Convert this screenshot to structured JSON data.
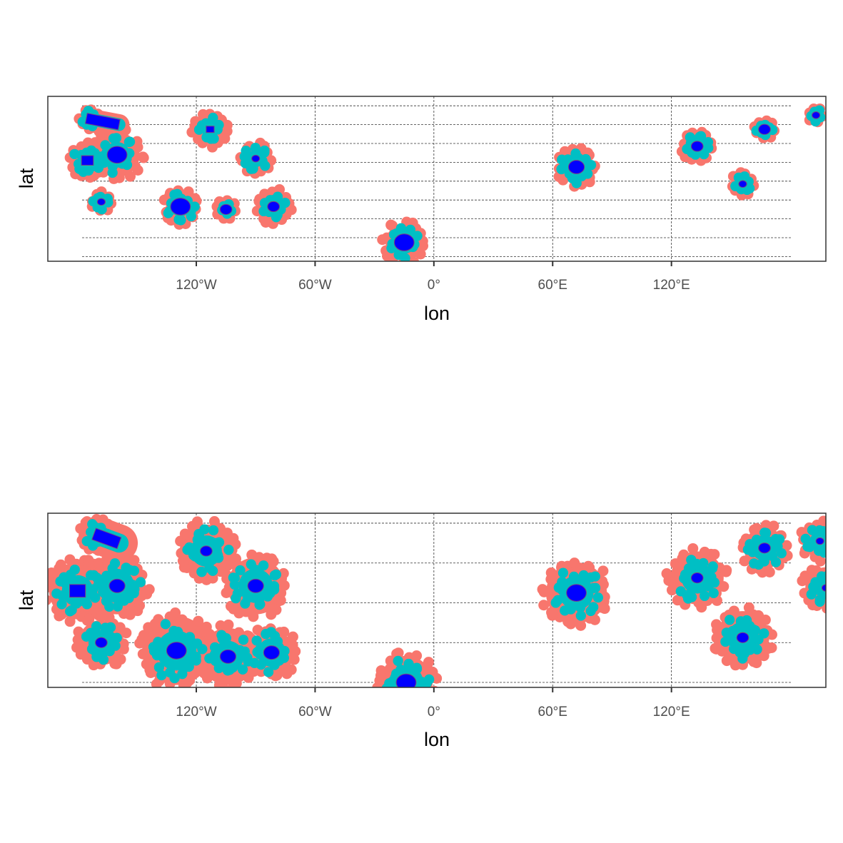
{
  "colors": {
    "outer_buffer": "#F8766D",
    "inner_buffer": "#00BFC4",
    "core": "#0000FF",
    "core_outline": "#7F3F7F",
    "panel_border": "#333333",
    "graticule": "#333333"
  },
  "chart_data": [
    {
      "type": "map",
      "xlabel": "lon",
      "ylabel": "lat",
      "xlim": [
        -195,
        198
      ],
      "ylim": [
        -85,
        90
      ],
      "x_ticks": [
        {
          "value": -120,
          "label": "120°W"
        },
        {
          "value": -60,
          "label": "60°W"
        },
        {
          "value": 0,
          "label": "0°"
        },
        {
          "value": 60,
          "label": "60°E"
        },
        {
          "value": 120,
          "label": "120°E"
        }
      ],
      "graticule_lat": [
        -80,
        -60,
        -40,
        -20,
        0,
        20,
        40,
        60,
        80
      ],
      "grid": true,
      "features": [
        {
          "lon": -174,
          "lat": 66,
          "outer": 5,
          "inner": 4,
          "core": 3.5,
          "shape": "band",
          "lon2": -159,
          "lat2": 60
        },
        {
          "lon": -166,
          "lat": 52,
          "outer": 3,
          "inner": 0,
          "core": 0
        },
        {
          "lon": -113,
          "lat": 55,
          "outer": 9,
          "inner": 6,
          "core": 2,
          "shape": "rect"
        },
        {
          "lon": -160,
          "lat": 28,
          "outer": 13,
          "inner": 9,
          "core": 5
        },
        {
          "lon": -175,
          "lat": 22,
          "outer": 9,
          "inner": 7,
          "core": 3,
          "shape": "rect"
        },
        {
          "lon": -90,
          "lat": 24,
          "outer": 8,
          "inner": 6,
          "core": 2
        },
        {
          "lon": 72,
          "lat": 15,
          "outer": 10,
          "inner": 8,
          "core": 4
        },
        {
          "lon": 133,
          "lat": 37,
          "outer": 8,
          "inner": 6,
          "core": 3
        },
        {
          "lon": 167,
          "lat": 55,
          "outer": 5,
          "inner": 4,
          "core": 3
        },
        {
          "lon": 193,
          "lat": 70,
          "outer": 4,
          "inner": 3,
          "core": 2
        },
        {
          "lon": 156,
          "lat": -3,
          "outer": 6,
          "inner": 4,
          "core": 2
        },
        {
          "lon": -168,
          "lat": -22,
          "outer": 5,
          "inner": 4,
          "core": 2
        },
        {
          "lon": -128,
          "lat": -27,
          "outer": 9,
          "inner": 7,
          "core": 5
        },
        {
          "lon": -105,
          "lat": -30,
          "outer": 5,
          "inner": 3,
          "core": 3
        },
        {
          "lon": -81,
          "lat": -27,
          "outer": 9,
          "inner": 6,
          "core": 3
        },
        {
          "lon": -15,
          "lat": -65,
          "outer": 11,
          "inner": 8,
          "core": 5
        }
      ]
    },
    {
      "type": "map",
      "xlabel": "lon",
      "ylabel": "lat",
      "xlim": [
        -195,
        198
      ],
      "ylim": [
        -85,
        90
      ],
      "x_ticks": [
        {
          "value": -120,
          "label": "120°W"
        },
        {
          "value": -60,
          "label": "60°W"
        },
        {
          "value": 0,
          "label": "0°"
        },
        {
          "value": 60,
          "label": "60°E"
        },
        {
          "value": 120,
          "label": "120°E"
        }
      ],
      "graticule_lat": [
        -80,
        -40,
        0,
        40,
        80
      ],
      "grid": true,
      "features": [
        {
          "lon": -170,
          "lat": 68,
          "outer": 9,
          "inner": 6,
          "core": 4,
          "shape": "band",
          "lon2": -159,
          "lat2": 60
        },
        {
          "lon": -115,
          "lat": 52,
          "outer": 15,
          "inner": 11,
          "core": 3
        },
        {
          "lon": -180,
          "lat": 12,
          "outer": 16,
          "inner": 11,
          "core": 4,
          "shape": "rect"
        },
        {
          "lon": -160,
          "lat": 17,
          "outer": 16,
          "inner": 12,
          "core": 4
        },
        {
          "lon": -90,
          "lat": 17,
          "outer": 16,
          "inner": 12,
          "core": 4
        },
        {
          "lon": -168,
          "lat": -40,
          "outer": 13,
          "inner": 9,
          "core": 3
        },
        {
          "lon": -130,
          "lat": -48,
          "outer": 19,
          "inner": 14,
          "core": 5
        },
        {
          "lon": -104,
          "lat": -54,
          "outer": 16,
          "inner": 11,
          "core": 4
        },
        {
          "lon": -82,
          "lat": -50,
          "outer": 13,
          "inner": 10,
          "core": 4
        },
        {
          "lon": -14,
          "lat": -80,
          "outer": 15,
          "inner": 12,
          "core": 5
        },
        {
          "lon": 72,
          "lat": 10,
          "outer": 17,
          "inner": 12,
          "core": 5
        },
        {
          "lon": 133,
          "lat": 25,
          "outer": 15,
          "inner": 11,
          "core": 3
        },
        {
          "lon": 167,
          "lat": 55,
          "outer": 12,
          "inner": 9,
          "core": 3
        },
        {
          "lon": 195,
          "lat": 62,
          "outer": 10,
          "inner": 7,
          "core": 2
        },
        {
          "lon": 198,
          "lat": 15,
          "outer": 12,
          "inner": 8,
          "core": 2
        },
        {
          "lon": 156,
          "lat": -35,
          "outer": 15,
          "inner": 11,
          "core": 3
        }
      ]
    }
  ]
}
